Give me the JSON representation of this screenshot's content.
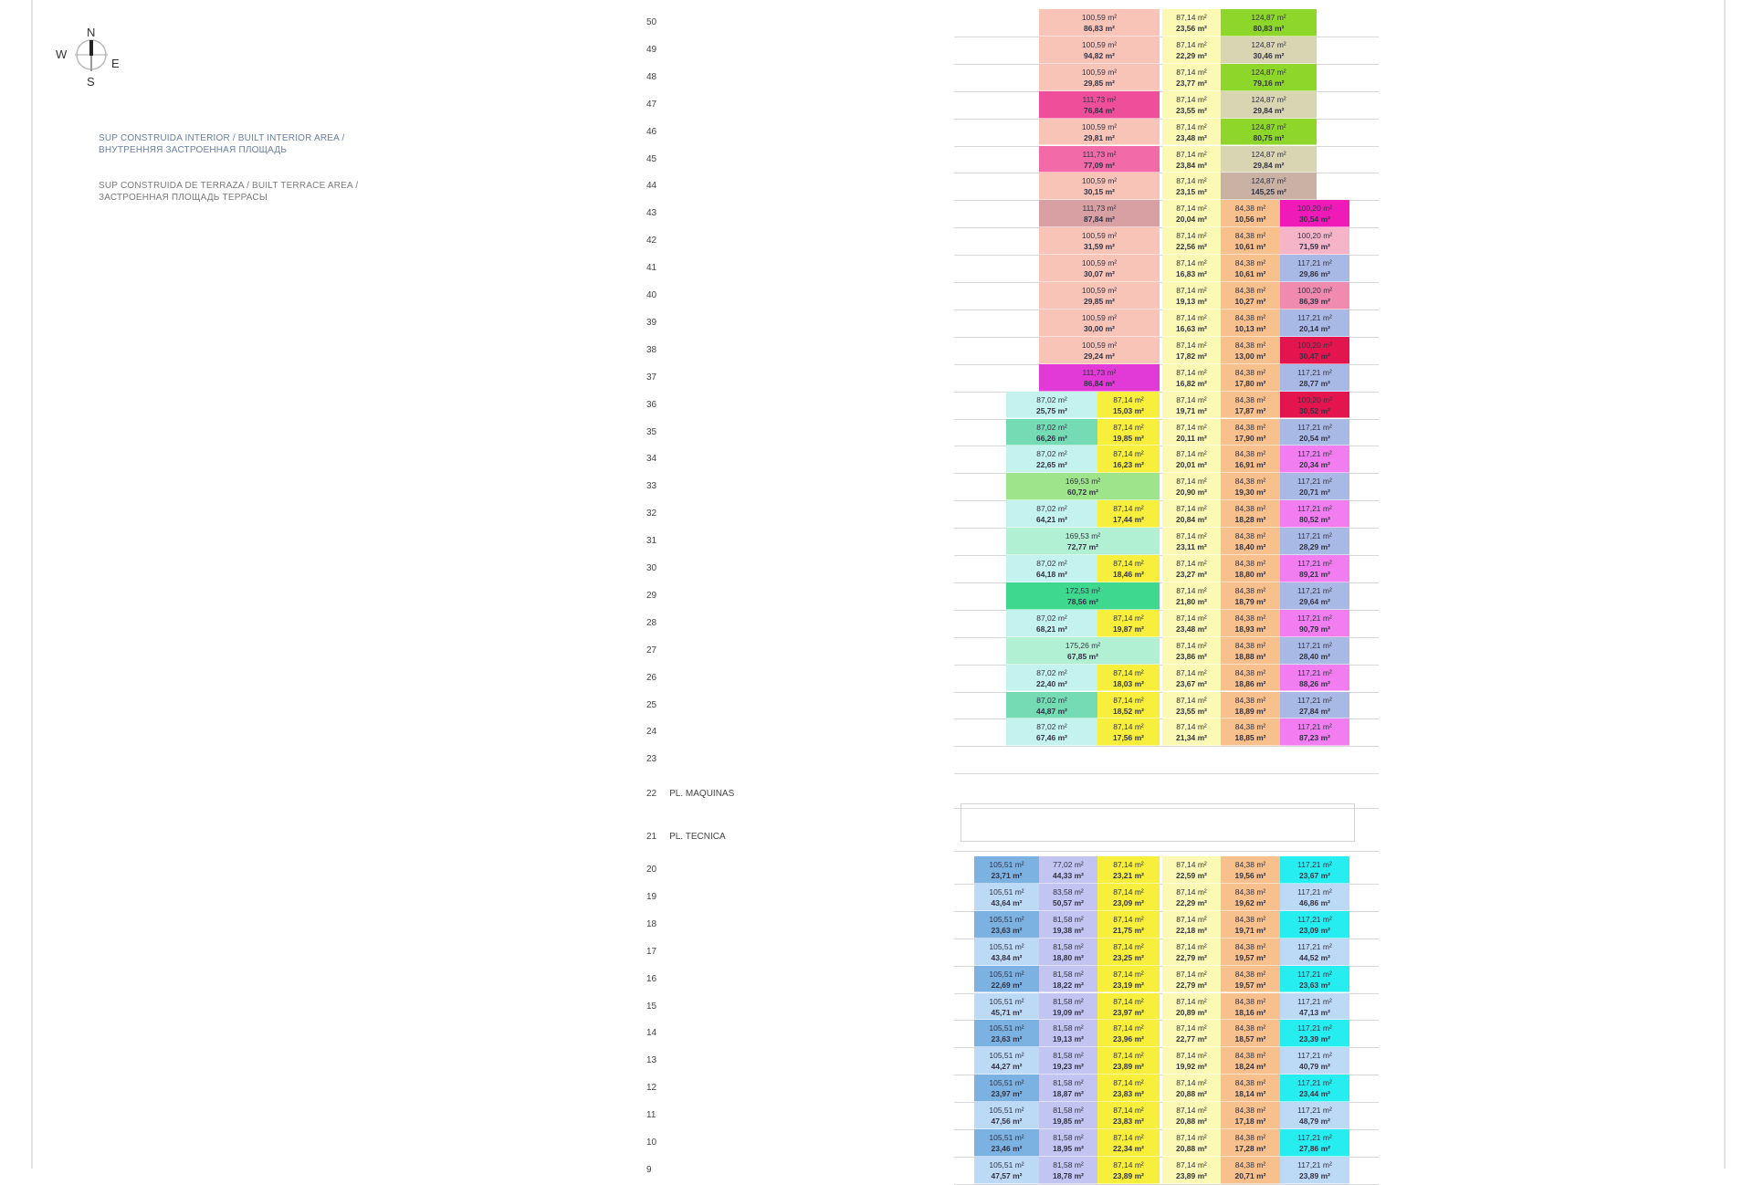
{
  "compass": {
    "n": "N",
    "s": "S",
    "e": "E",
    "w": "W"
  },
  "legend": {
    "interior": [
      "SUP CONSTRUIDA INTERIOR / BUILT INTERIOR AREA /",
      "ВНУТРЕННЯЯ ЗАСТРОЕННАЯ ПЛОЩАДЬ"
    ],
    "terrace": [
      "SUP CONSTRUIDA DE TERRAZA / BUILT TERRACE AREA /",
      "ЗАСТРОЕННАЯ ПЛОЩАДЬ ТЕРРАСЫ"
    ]
  },
  "palette": {
    "pink": "#f8c4b8",
    "hotpink": "#ef4f9a",
    "hotpink2": "#f36aa8",
    "magenta": "#e23ad6",
    "magenta2": "#f01ab8",
    "dusty": "#d9a0a4",
    "ylight": "#fbf9b4",
    "green": "#8ed62a",
    "beige": "#d9d4b2",
    "taupe": "#c9b2a4",
    "orange": "#f7c08c",
    "lpink": "#f6b4c8",
    "periw": "#a9b9e6",
    "rose": "#f08aae",
    "red": "#e4154e",
    "cyan": "#c4f3ef",
    "teal": "#74dbb4",
    "yellow": "#f7ef3c",
    "glight": "#9ee48a",
    "mint": "#b2f0d4",
    "gstrong": "#3ed88e",
    "violet": "#f27df0",
    "blue": "#7cb2e2",
    "lav": "#c2c4f2",
    "lblue": "#bcd9f6",
    "cyanb": "#26eef0",
    "olive": "#7d7a12"
  },
  "floors": [
    {
      "label": "50",
      "sec": "U1",
      "cells": [
        [
          "pink",
          "100,59 m²",
          "86,83 m²"
        ],
        [
          "ylight",
          "87,14 m²",
          "23,56 m²"
        ],
        [
          "green",
          "124,87 m²",
          "80,83 m²"
        ]
      ]
    },
    {
      "label": "49",
      "sec": "U1",
      "cells": [
        [
          "pink",
          "100,59 m²",
          "94,82 m²"
        ],
        [
          "ylight",
          "87,14 m²",
          "22,29 m²"
        ],
        [
          "beige",
          "124,87 m²",
          "30,46 m²"
        ]
      ]
    },
    {
      "label": "48",
      "sec": "U1",
      "cells": [
        [
          "pink",
          "100,59 m²",
          "29,85 m²"
        ],
        [
          "ylight",
          "87,14 m²",
          "23,77 m²"
        ],
        [
          "green",
          "124,87 m²",
          "79,16 m²"
        ]
      ]
    },
    {
      "label": "47",
      "sec": "U1",
      "cells": [
        [
          "hotpink",
          "111,73 m²",
          "76,84 m²"
        ],
        [
          "ylight",
          "87,14 m²",
          "23,55 m²"
        ],
        [
          "beige",
          "124,87 m²",
          "29,84 m²"
        ]
      ]
    },
    {
      "label": "46",
      "sec": "U1",
      "cells": [
        [
          "pink",
          "100,59 m²",
          "29,81 m²"
        ],
        [
          "ylight",
          "87,14 m²",
          "23,48 m²"
        ],
        [
          "green",
          "124,87 m²",
          "80,75 m²"
        ]
      ]
    },
    {
      "label": "45",
      "sec": "U1",
      "cells": [
        [
          "hotpink2",
          "111,73 m²",
          "77,09 m²"
        ],
        [
          "ylight",
          "87,14 m²",
          "23,84 m²"
        ],
        [
          "beige",
          "124,87 m²",
          "29,84 m²"
        ]
      ]
    },
    {
      "label": "44",
      "sec": "U1",
      "cells": [
        [
          "pink",
          "100,59 m²",
          "30,15 m²"
        ],
        [
          "ylight",
          "87,14 m²",
          "23,15 m²"
        ],
        [
          "taupe",
          "124,87 m²",
          "145,25 m²"
        ]
      ]
    },
    {
      "label": "43",
      "sec": "U2",
      "cells": [
        [
          "dusty",
          "111,73 m²",
          "87,84 m²"
        ],
        [
          "ylight",
          "87,14 m²",
          "20,04 m²"
        ],
        [
          "orange",
          "84,38 m²",
          "10,56 m²"
        ],
        [
          "magenta2",
          "100,20 m²",
          "30,54 m²"
        ]
      ]
    },
    {
      "label": "42",
      "sec": "U2",
      "cells": [
        [
          "pink",
          "100,59 m²",
          "31,59 m²"
        ],
        [
          "ylight",
          "87,14 m²",
          "22,56 m²"
        ],
        [
          "orange",
          "84,38 m²",
          "10,61 m²"
        ],
        [
          "lpink",
          "100,20 m²",
          "71,59 m²"
        ]
      ]
    },
    {
      "label": "41",
      "sec": "U2",
      "cells": [
        [
          "pink",
          "100,59 m²",
          "30,07 m²"
        ],
        [
          "ylight",
          "87,14 m²",
          "16,83 m²"
        ],
        [
          "orange",
          "84,38 m²",
          "10,61 m²"
        ],
        [
          "periw",
          "117,21 m²",
          "29,86 m²"
        ]
      ]
    },
    {
      "label": "40",
      "sec": "U2",
      "cells": [
        [
          "pink",
          "100,59 m²",
          "29,85 m²"
        ],
        [
          "ylight",
          "87,14 m²",
          "19,13 m²"
        ],
        [
          "orange",
          "84,38 m²",
          "10,27 m²"
        ],
        [
          "rose",
          "100,20 m²",
          "86,39 m²"
        ]
      ]
    },
    {
      "label": "39",
      "sec": "U2",
      "cells": [
        [
          "pink",
          "100,59 m²",
          "30,00 m²"
        ],
        [
          "ylight",
          "87,14 m²",
          "16,63 m²"
        ],
        [
          "orange",
          "84,38 m²",
          "10,13 m²"
        ],
        [
          "periw",
          "117,21 m²",
          "20,14 m²"
        ]
      ]
    },
    {
      "label": "38",
      "sec": "U2",
      "cells": [
        [
          "pink",
          "100,59 m²",
          "29,24 m²"
        ],
        [
          "ylight",
          "87,14 m²",
          "17,82 m²"
        ],
        [
          "orange",
          "84,38 m²",
          "13,00 m²"
        ],
        [
          "red",
          "100,20 m²",
          "30,47 m²"
        ]
      ]
    },
    {
      "label": "37",
      "sec": "U2",
      "cells": [
        [
          "magenta",
          "111,73 m²",
          "86,84 m²"
        ],
        [
          "ylight",
          "87,14 m²",
          "16,82 m²"
        ],
        [
          "orange",
          "84,38 m²",
          "17,80 m²"
        ],
        [
          "periw",
          "117,21 m²",
          "28,77 m²"
        ]
      ]
    },
    {
      "label": "36",
      "sec": "M",
      "cells": [
        [
          "cyan",
          "87,02 m²",
          "25,75 m²"
        ],
        [
          "yellow",
          "87,14 m²",
          "15,03 m²"
        ],
        [
          "ylight",
          "87,14 m²",
          "19,71 m²"
        ],
        [
          "orange",
          "84,38 m²",
          "17,87 m²"
        ],
        [
          "red",
          "100,20 m²",
          "30,52 m²"
        ]
      ]
    },
    {
      "label": "35",
      "sec": "M",
      "cells": [
        [
          "teal",
          "87,02 m²",
          "66,26 m²"
        ],
        [
          "yellow",
          "87,14 m²",
          "19,85 m²"
        ],
        [
          "ylight",
          "87,14 m²",
          "20,11 m²"
        ],
        [
          "orange",
          "84,38 m²",
          "17,90 m²"
        ],
        [
          "periw",
          "117,21 m²",
          "20,54 m²"
        ]
      ]
    },
    {
      "label": "34",
      "sec": "M",
      "cells": [
        [
          "cyan",
          "87,02 m²",
          "22,65 m²"
        ],
        [
          "yellow",
          "87,14 m²",
          "16,23 m²"
        ],
        [
          "ylight",
          "87,14 m²",
          "20,01 m²"
        ],
        [
          "orange",
          "84,38 m²",
          "16,91 m²"
        ],
        [
          "violet",
          "117,21 m²",
          "20,34 m²"
        ]
      ]
    },
    {
      "label": "33",
      "sec": "M",
      "cells": [
        [
          "glight",
          "169,53 m²",
          "60,72 m²",
          2
        ],
        [
          "ylight",
          "87,14 m²",
          "20,90 m²"
        ],
        [
          "orange",
          "84,38 m²",
          "19,30 m²"
        ],
        [
          "periw",
          "117,21 m²",
          "20,71 m²"
        ]
      ]
    },
    {
      "label": "32",
      "sec": "M",
      "cells": [
        [
          "cyan",
          "87,02 m²",
          "64,21 m²"
        ],
        [
          "yellow",
          "87,14 m²",
          "17,44 m²"
        ],
        [
          "ylight",
          "87,14 m²",
          "20,84 m²"
        ],
        [
          "orange",
          "84,38 m²",
          "18,28 m²"
        ],
        [
          "violet",
          "117,21 m²",
          "80,52 m²"
        ]
      ]
    },
    {
      "label": "31",
      "sec": "M",
      "cells": [
        [
          "mint",
          "169,53 m²",
          "72,77 m²",
          2
        ],
        [
          "ylight",
          "87,14 m²",
          "23,11 m²"
        ],
        [
          "orange",
          "84,38 m²",
          "18,40 m²"
        ],
        [
          "periw",
          "117,21 m²",
          "28,29 m²"
        ]
      ]
    },
    {
      "label": "30",
      "sec": "M",
      "cells": [
        [
          "cyan",
          "87,02 m²",
          "64,18 m²"
        ],
        [
          "yellow",
          "87,14 m²",
          "18,46 m²"
        ],
        [
          "ylight",
          "87,14 m²",
          "23,27 m²"
        ],
        [
          "orange",
          "84,38 m²",
          "18,80 m²"
        ],
        [
          "violet",
          "117,21 m²",
          "89,21 m²"
        ]
      ]
    },
    {
      "label": "29",
      "sec": "M",
      "cells": [
        [
          "gstrong",
          "172,53 m²",
          "78,56 m²",
          2
        ],
        [
          "ylight",
          "87,14 m²",
          "21,80 m²"
        ],
        [
          "orange",
          "84,38 m²",
          "18,79 m²"
        ],
        [
          "periw",
          "117,21 m²",
          "29,64 m²"
        ]
      ]
    },
    {
      "label": "28",
      "sec": "M",
      "cells": [
        [
          "cyan",
          "87,02 m²",
          "68,21 m²"
        ],
        [
          "yellow",
          "87,14 m²",
          "19,87 m²"
        ],
        [
          "ylight",
          "87,14 m²",
          "23,48 m²"
        ],
        [
          "orange",
          "84,38 m²",
          "18,93 m²"
        ],
        [
          "violet",
          "117,21 m²",
          "90,79 m²"
        ]
      ]
    },
    {
      "label": "27",
      "sec": "M",
      "cells": [
        [
          "mint",
          "175,26 m²",
          "67,85 m²",
          2
        ],
        [
          "ylight",
          "87,14 m²",
          "23,86 m²"
        ],
        [
          "orange",
          "84,38 m²",
          "18,88 m²"
        ],
        [
          "periw",
          "117,21 m²",
          "28,40 m²"
        ]
      ]
    },
    {
      "label": "26",
      "sec": "M",
      "cells": [
        [
          "cyan",
          "87,02 m²",
          "22,40 m²"
        ],
        [
          "yellow",
          "87,14 m²",
          "18,03 m²"
        ],
        [
          "ylight",
          "87,14 m²",
          "23,67 m²"
        ],
        [
          "orange",
          "84,38 m²",
          "18,86 m²"
        ],
        [
          "violet",
          "117,21 m²",
          "88,26 m²"
        ]
      ]
    },
    {
      "label": "25",
      "sec": "M",
      "cells": [
        [
          "teal",
          "87,02 m²",
          "44,87 m²"
        ],
        [
          "yellow",
          "87,14 m²",
          "18,52 m²"
        ],
        [
          "ylight",
          "87,14 m²",
          "23,55 m²"
        ],
        [
          "orange",
          "84,38 m²",
          "18,89 m²"
        ],
        [
          "periw",
          "117,21 m²",
          "27,84 m²"
        ]
      ]
    },
    {
      "label": "24",
      "sec": "M",
      "cells": [
        [
          "cyan",
          "87,02 m²",
          "67,46 m²"
        ],
        [
          "yellow",
          "87,14 m²",
          "17,56 m²"
        ],
        [
          "ylight",
          "87,14 m²",
          "21,34 m²"
        ],
        [
          "orange",
          "84,38 m²",
          "18,85 m²"
        ],
        [
          "violet",
          "117,21 m²",
          "87,23 m²"
        ]
      ]
    },
    {
      "label": "23",
      "sec": "E",
      "cells": []
    },
    {
      "label": "22",
      "name": "PL. MAQUINAS",
      "sec": "E",
      "cells": []
    },
    {
      "label": "21",
      "name": "PL. TECNICA",
      "sec": "E",
      "cells": []
    },
    {
      "label": "20",
      "sec": "L",
      "cells": [
        [
          "blue",
          "105,51 m²",
          "23,71 m²"
        ],
        [
          "lav",
          "77,02 m²",
          "44,33 m²"
        ],
        [
          "yellow",
          "87,14 m²",
          "23,21 m²"
        ],
        [
          "ylight",
          "87,14 m²",
          "22,59 m²"
        ],
        [
          "orange",
          "84,38 m²",
          "19,56 m²"
        ],
        [
          "cyanb",
          "117,21 m²",
          "23,67 m²"
        ]
      ]
    },
    {
      "label": "19",
      "sec": "L",
      "cells": [
        [
          "lblue",
          "105,51 m²",
          "43,64 m²"
        ],
        [
          "lav",
          "83,58 m²",
          "50,57 m²"
        ],
        [
          "yellow",
          "87,14 m²",
          "23,09 m²"
        ],
        [
          "ylight",
          "87,14 m²",
          "22,29 m²"
        ],
        [
          "orange",
          "84,38 m²",
          "19,62 m²"
        ],
        [
          "lblue",
          "117,21 m²",
          "46,86 m²"
        ]
      ]
    },
    {
      "label": "18",
      "sec": "L",
      "cells": [
        [
          "blue",
          "105,51 m²",
          "23,63 m²"
        ],
        [
          "lav",
          "81,58 m²",
          "19,38 m²"
        ],
        [
          "yellow",
          "87,14 m²",
          "21,75 m²"
        ],
        [
          "ylight",
          "87,14 m²",
          "22,18 m²"
        ],
        [
          "orange",
          "84,38 m²",
          "19,71 m²"
        ],
        [
          "cyanb",
          "117,21 m²",
          "23,09 m²"
        ]
      ]
    },
    {
      "label": "17",
      "sec": "L",
      "cells": [
        [
          "lblue",
          "105,51 m²",
          "43,84 m²"
        ],
        [
          "lav",
          "81,58 m²",
          "18,80 m²"
        ],
        [
          "yellow",
          "87,14 m²",
          "23,25 m²"
        ],
        [
          "ylight",
          "87,14 m²",
          "22,79 m²"
        ],
        [
          "orange",
          "84,38 m²",
          "19,57 m²"
        ],
        [
          "lblue",
          "117,21 m²",
          "44,52 m²"
        ]
      ]
    },
    {
      "label": "16",
      "sec": "L",
      "cells": [
        [
          "blue",
          "105,51 m²",
          "22,69 m²"
        ],
        [
          "lav",
          "81,58 m²",
          "18,22 m²"
        ],
        [
          "yellow",
          "87,14 m²",
          "23,19 m²"
        ],
        [
          "ylight",
          "87,14 m²",
          "22,79 m²"
        ],
        [
          "orange",
          "84,38 m²",
          "19,57 m²"
        ],
        [
          "cyanb",
          "117,21 m²",
          "23,63 m²"
        ]
      ]
    },
    {
      "label": "15",
      "sec": "L",
      "cells": [
        [
          "lblue",
          "105,51 m²",
          "45,71 m²"
        ],
        [
          "lav",
          "81,58 m²",
          "19,09 m²"
        ],
        [
          "yellow",
          "87,14 m²",
          "23,97 m²"
        ],
        [
          "ylight",
          "87,14 m²",
          "20,89 m²"
        ],
        [
          "orange",
          "84,38 m²",
          "18,16 m²"
        ],
        [
          "lblue",
          "117,21 m²",
          "47,13 m²"
        ]
      ]
    },
    {
      "label": "14",
      "sec": "L",
      "cells": [
        [
          "blue",
          "105,51 m²",
          "23,63 m²"
        ],
        [
          "lav",
          "81,58 m²",
          "19,13 m²"
        ],
        [
          "yellow",
          "87,14 m²",
          "23,96 m²"
        ],
        [
          "ylight",
          "87,14 m²",
          "22,77 m²"
        ],
        [
          "orange",
          "84,38 m²",
          "18,57 m²"
        ],
        [
          "cyanb",
          "117,21 m²",
          "23,39 m²"
        ]
      ]
    },
    {
      "label": "13",
      "sec": "L",
      "cells": [
        [
          "lblue",
          "105,51 m²",
          "44,27 m²"
        ],
        [
          "lav",
          "81,58 m²",
          "19,23 m²"
        ],
        [
          "yellow",
          "87,14 m²",
          "23,89 m²"
        ],
        [
          "ylight",
          "87,14 m²",
          "19,92 m²"
        ],
        [
          "orange",
          "84,38 m²",
          "18,24 m²"
        ],
        [
          "lblue",
          "117,21 m²",
          "40,79 m²"
        ]
      ]
    },
    {
      "label": "12",
      "sec": "L",
      "cells": [
        [
          "blue",
          "105,51 m²",
          "23,97 m²"
        ],
        [
          "lav",
          "81,58 m²",
          "18,87 m²"
        ],
        [
          "yellow",
          "87,14 m²",
          "23,83 m²"
        ],
        [
          "ylight",
          "87,14 m²",
          "20,88 m²"
        ],
        [
          "orange",
          "84,38 m²",
          "18,14 m²"
        ],
        [
          "cyanb",
          "117,21 m²",
          "23,44 m²"
        ]
      ]
    },
    {
      "label": "11",
      "sec": "L",
      "cells": [
        [
          "lblue",
          "105,51 m²",
          "47,56 m²"
        ],
        [
          "lav",
          "81,58 m²",
          "19,85 m²"
        ],
        [
          "yellow",
          "87,14 m²",
          "23,83 m²"
        ],
        [
          "ylight",
          "87,14 m²",
          "20,88 m²"
        ],
        [
          "orange",
          "84,38 m²",
          "17,18 m²"
        ],
        [
          "lblue",
          "117,21 m²",
          "48,79 m²"
        ]
      ]
    },
    {
      "label": "10",
      "sec": "L",
      "cells": [
        [
          "blue",
          "105,51 m²",
          "23,46 m²"
        ],
        [
          "lav",
          "81,58 m²",
          "18,95 m²"
        ],
        [
          "yellow",
          "87,14 m²",
          "22,34 m²"
        ],
        [
          "ylight",
          "87,14 m²",
          "20,88 m²"
        ],
        [
          "orange",
          "84,38 m²",
          "17,28 m²"
        ],
        [
          "cyanb",
          "117,21 m²",
          "27,86 m²"
        ]
      ]
    },
    {
      "label": "9",
      "sec": "L",
      "cells": [
        [
          "lblue",
          "105,51 m²",
          "47,57 m²"
        ],
        [
          "lav",
          "81,58 m²",
          "18,78 m²"
        ],
        [
          "yellow",
          "87,14 m²",
          "23,89 m²"
        ],
        [
          "ylight",
          "87,14 m²",
          "23,89 m²"
        ],
        [
          "orange",
          "84,38 m²",
          "20,71 m²"
        ],
        [
          "lblue",
          "117,21 m²",
          "23,89 m²"
        ]
      ]
    }
  ]
}
